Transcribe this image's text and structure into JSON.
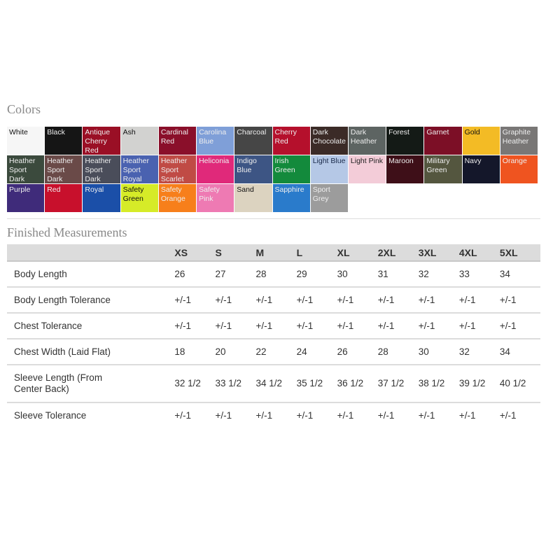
{
  "colors_title": "Colors",
  "swatches": [
    {
      "name": "White",
      "color": "#f6f6f6",
      "text": "#111"
    },
    {
      "name": "Black",
      "color": "#151515",
      "text": "#eee"
    },
    {
      "name": "Antique Cherry Red",
      "color": "#9a0f25",
      "text": "#eee"
    },
    {
      "name": "Ash",
      "color": "#d2d2d0",
      "text": "#111"
    },
    {
      "name": "Cardinal Red",
      "color": "#8a0f2a",
      "text": "#eee"
    },
    {
      "name": "Carolina Blue",
      "color": "#7f9fd8",
      "text": "#eee"
    },
    {
      "name": "Charcoal",
      "color": "#464646",
      "text": "#eee"
    },
    {
      "name": "Cherry Red",
      "color": "#b5102c",
      "text": "#eee"
    },
    {
      "name": "Dark Chocolate",
      "color": "#3b2b27",
      "text": "#eee"
    },
    {
      "name": "Dark Heather",
      "color": "#5d6462",
      "text": "#eee"
    },
    {
      "name": "Forest",
      "color": "#141a16",
      "text": "#eee"
    },
    {
      "name": "Garnet",
      "color": "#7c0f26",
      "text": "#eee"
    },
    {
      "name": "Gold",
      "color": "#f3bb25",
      "text": "#111"
    },
    {
      "name": "Graphite Heather",
      "color": "#797776",
      "text": "#eee"
    },
    {
      "name": "Heather Sport Dark Green",
      "color": "#3b4a3d",
      "text": "#eee"
    },
    {
      "name": "Heather Sport Dark Maroon",
      "color": "#6a4a48",
      "text": "#eee"
    },
    {
      "name": "Heather Sport Dark Navy",
      "color": "#4a4d5a",
      "text": "#eee"
    },
    {
      "name": "Heather Sport Royal",
      "color": "#4a62b0",
      "text": "#eee"
    },
    {
      "name": "Heather Sport Scarlet",
      "color": "#c04b45",
      "text": "#eee"
    },
    {
      "name": "Heliconia",
      "color": "#e0297a",
      "text": "#eee"
    },
    {
      "name": "Indigo Blue",
      "color": "#3d5584",
      "text": "#eee"
    },
    {
      "name": "Irish Green",
      "color": "#138a3c",
      "text": "#eee"
    },
    {
      "name": "Light Blue",
      "color": "#b5c8e6",
      "text": "#1a2a4a"
    },
    {
      "name": "Light Pink",
      "color": "#f3ccd8",
      "text": "#222"
    },
    {
      "name": "Maroon",
      "color": "#3e0f18",
      "text": "#eee"
    },
    {
      "name": "Military Green",
      "color": "#54563f",
      "text": "#eee"
    },
    {
      "name": "Navy",
      "color": "#14172a",
      "text": "#eee"
    },
    {
      "name": "Orange",
      "color": "#ef5420",
      "text": "#eee"
    },
    {
      "name": "Purple",
      "color": "#3f2b7a",
      "text": "#eee"
    },
    {
      "name": "Red",
      "color": "#c8102c",
      "text": "#eee"
    },
    {
      "name": "Royal",
      "color": "#1b4fa8",
      "text": "#eee"
    },
    {
      "name": "Safety Green",
      "color": "#d6eb28",
      "text": "#111"
    },
    {
      "name": "Safety Orange",
      "color": "#f77f1b",
      "text": "#eee"
    },
    {
      "name": "Safety Pink",
      "color": "#ee7ab3",
      "text": "#eee"
    },
    {
      "name": "Sand",
      "color": "#dcd3c0",
      "text": "#111"
    },
    {
      "name": "Sapphire",
      "color": "#2a7bcb",
      "text": "#eee"
    },
    {
      "name": "Sport Grey",
      "color": "#9c9c9c",
      "text": "#eee"
    }
  ],
  "measurements_title": "Finished Measurements",
  "table": {
    "sizes": [
      "XS",
      "S",
      "M",
      "L",
      "XL",
      "2XL",
      "3XL",
      "4XL",
      "5XL"
    ],
    "rows": [
      {
        "label": "Body Length",
        "values": [
          "26",
          "27",
          "28",
          "29",
          "30",
          "31",
          "32",
          "33",
          "34"
        ]
      },
      {
        "label": "Body Length Tolerance",
        "values": [
          "+/-1",
          "+/-1",
          "+/-1",
          "+/-1",
          "+/-1",
          "+/-1",
          "+/-1",
          "+/-1",
          "+/-1"
        ]
      },
      {
        "label": "Chest Tolerance",
        "values": [
          "+/-1",
          "+/-1",
          "+/-1",
          "+/-1",
          "+/-1",
          "+/-1",
          "+/-1",
          "+/-1",
          "+/-1"
        ]
      },
      {
        "label": "Chest Width (Laid Flat)",
        "values": [
          "18",
          "20",
          "22",
          "24",
          "26",
          "28",
          "30",
          "32",
          "34"
        ]
      },
      {
        "label": "Sleeve Length (From Center Back)",
        "values": [
          "32 1/2",
          "33 1/2",
          "34 1/2",
          "35 1/2",
          "36 1/2",
          "37 1/2",
          "38 1/2",
          "39 1/2",
          "40 1/2"
        ]
      },
      {
        "label": "Sleeve Tolerance",
        "values": [
          "+/-1",
          "+/-1",
          "+/-1",
          "+/-1",
          "+/-1",
          "+/-1",
          "+/-1",
          "+/-1",
          "+/-1"
        ]
      }
    ]
  }
}
